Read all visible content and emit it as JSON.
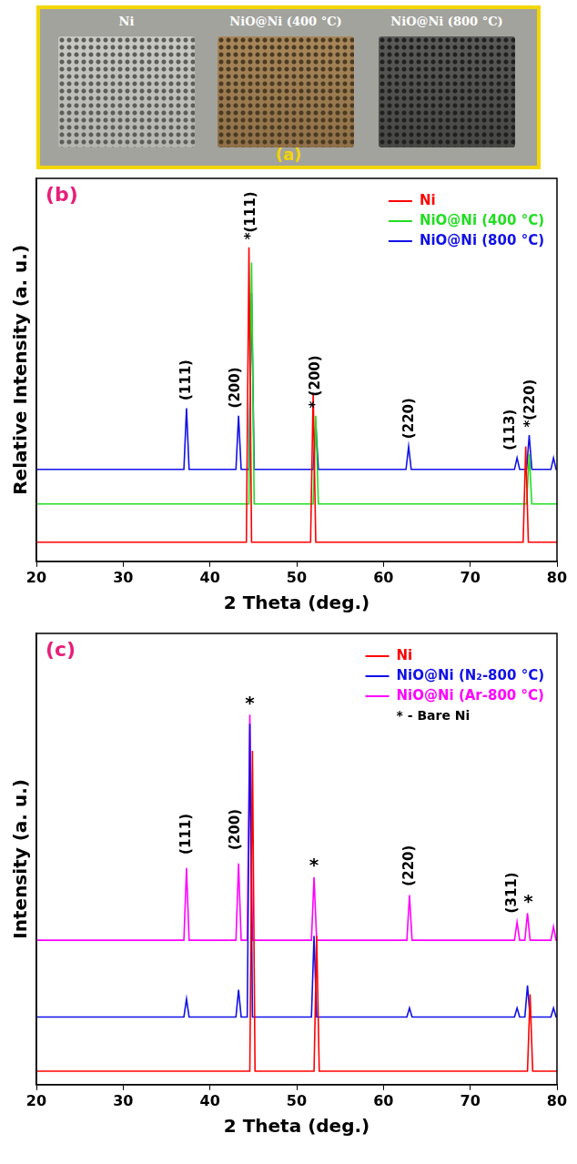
{
  "photo": {
    "labels": [
      "Ni",
      "NiO@Ni (400 °C)",
      "NiO@Ni (800 °C)"
    ],
    "panel_label": "(a)"
  },
  "chart_data": [
    {
      "type": "line",
      "panel_label": "(b)",
      "x_label": "2 Theta (deg.)",
      "y_label": "Relative Intensity (a. u.)",
      "xlim": [
        20,
        80
      ],
      "xticks": [
        20,
        30,
        40,
        50,
        60,
        70,
        80
      ],
      "ylim": [
        0,
        100
      ],
      "tick_labels": "x",
      "grid": false,
      "legend": "upper right",
      "series": [
        {
          "name": "Ni",
          "color": "#ff0000",
          "x": [
            20,
            44.2,
            44.5,
            44.8,
            51.6,
            51.9,
            52.2,
            76.1,
            76.4,
            76.7,
            80
          ],
          "values": [
            5,
            5,
            82,
            5,
            5,
            44,
            5,
            5,
            30,
            5,
            5
          ]
        },
        {
          "name": "NiO@Ni (400 °C)",
          "color": "#22dd22",
          "x": [
            20,
            44.5,
            44.8,
            45.1,
            51.9,
            52.2,
            52.5,
            76.5,
            76.8,
            77.1,
            80
          ],
          "values": [
            15,
            15,
            78,
            15,
            15,
            38,
            15,
            15,
            28,
            15,
            15
          ]
        },
        {
          "name": "NiO@Ni (800 °C)",
          "color": "#1010e8",
          "x": [
            20,
            37.0,
            37.3,
            37.6,
            43.0,
            43.3,
            43.6,
            44.5,
            44.8,
            45.1,
            51.9,
            52.2,
            52.5,
            62.6,
            62.9,
            63.2,
            75.1,
            75.4,
            75.7,
            76.5,
            76.8,
            77.1,
            79.3,
            79.6,
            79.9,
            80
          ],
          "values": [
            24,
            24,
            40,
            24,
            24,
            38,
            24,
            24,
            70,
            24,
            24,
            36,
            24,
            24,
            30,
            24,
            24,
            27,
            24,
            24,
            33,
            24,
            24,
            27,
            24,
            24
          ]
        }
      ],
      "annotations": [
        {
          "text": "(111)",
          "x": 37.3,
          "y": 42
        },
        {
          "text": "(200)",
          "x": 43.0,
          "y": 40
        },
        {
          "text": "*(111)",
          "x": 44.8,
          "y": 84
        },
        {
          "text": "* (200)",
          "x": 52.2,
          "y": 40
        },
        {
          "text": "(220)",
          "x": 63.0,
          "y": 32
        },
        {
          "text": "(113)",
          "x": 74.7,
          "y": 29
        },
        {
          "text": "*(220)",
          "x": 77.0,
          "y": 35
        }
      ]
    },
    {
      "type": "line",
      "panel_label": "(c)",
      "x_label": "2 Theta (deg.)",
      "y_label": "Intensity (a. u.)",
      "xlim": [
        20,
        80
      ],
      "xticks": [
        20,
        30,
        40,
        50,
        60,
        70,
        80
      ],
      "ylim": [
        0,
        100
      ],
      "tick_labels": "x",
      "grid": false,
      "legend": "upper right",
      "legend_note": "* - Bare Ni",
      "series": [
        {
          "name": "Ni",
          "color": "#ff0000",
          "x": [
            20,
            44.6,
            44.9,
            45.2,
            52.0,
            52.3,
            52.6,
            76.6,
            76.9,
            77.2,
            80
          ],
          "values": [
            3,
            3,
            74,
            3,
            3,
            33,
            3,
            3,
            20,
            3,
            3
          ]
        },
        {
          "name": "NiO@Ni (N₂-800 °C)",
          "color": "#1010e8",
          "x": [
            20,
            37.0,
            37.3,
            37.6,
            43.0,
            43.3,
            43.6,
            44.3,
            44.6,
            44.9,
            51.7,
            52.0,
            52.3,
            62.7,
            63.0,
            63.3,
            75.1,
            75.4,
            75.7,
            76.3,
            76.6,
            76.9,
            79.3,
            79.6,
            79.9,
            80
          ],
          "values": [
            15,
            15,
            19,
            15,
            15,
            21,
            15,
            15,
            80,
            15,
            15,
            33,
            15,
            15,
            17,
            15,
            15,
            17,
            15,
            15,
            22,
            15,
            15,
            17,
            15,
            15
          ]
        },
        {
          "name": "NiO@Ni (Ar-800 °C)",
          "color": "#ff00ff",
          "x": [
            20,
            37.0,
            37.3,
            37.6,
            43.0,
            43.3,
            43.6,
            44.3,
            44.6,
            44.9,
            51.7,
            52.0,
            52.3,
            62.7,
            63.0,
            63.3,
            75.1,
            75.4,
            75.7,
            76.3,
            76.6,
            76.9,
            79.3,
            79.6,
            79.9,
            80
          ],
          "values": [
            32,
            32,
            48,
            32,
            32,
            49,
            32,
            32,
            82,
            32,
            32,
            46,
            32,
            32,
            42,
            32,
            32,
            36,
            32,
            32,
            38,
            32,
            32,
            35,
            32,
            32
          ]
        }
      ],
      "annotations": [
        {
          "text": "(111)",
          "x": 37.3,
          "y": 51
        },
        {
          "text": "(200)",
          "x": 43.0,
          "y": 52
        },
        {
          "text": "*",
          "x": 44.6,
          "y": 84
        },
        {
          "text": "*",
          "x": 52.0,
          "y": 48
        },
        {
          "text": "(220)",
          "x": 63.0,
          "y": 44
        },
        {
          "text": "(311)",
          "x": 74.9,
          "y": 38
        },
        {
          "text": "*",
          "x": 76.7,
          "y": 40
        }
      ]
    }
  ]
}
